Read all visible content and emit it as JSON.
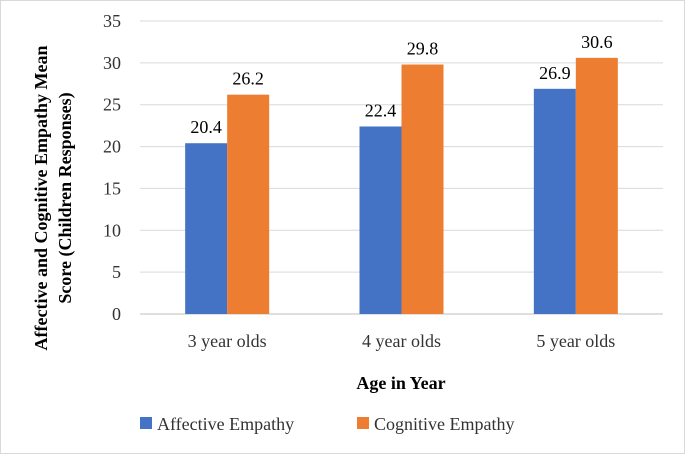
{
  "chart_data": {
    "type": "bar",
    "categories": [
      "3 year olds",
      "4 year olds",
      "5 year olds"
    ],
    "series": [
      {
        "name": "Affective Empathy",
        "color": "#4472C4",
        "values": [
          20.4,
          22.4,
          26.9
        ]
      },
      {
        "name": "Cognitive Empathy",
        "color": "#ED7D31",
        "values": [
          26.2,
          29.8,
          30.6
        ]
      }
    ],
    "xlabel": "Age in Year",
    "ylabel_line1": "Affective and Cognitive Empathy Mean",
    "ylabel_line2": "Score (Children Responses)",
    "ylim": [
      0,
      35
    ],
    "yticks": [
      0,
      5,
      10,
      15,
      20,
      25,
      30,
      35
    ],
    "grid": true,
    "legend_position": "bottom"
  }
}
